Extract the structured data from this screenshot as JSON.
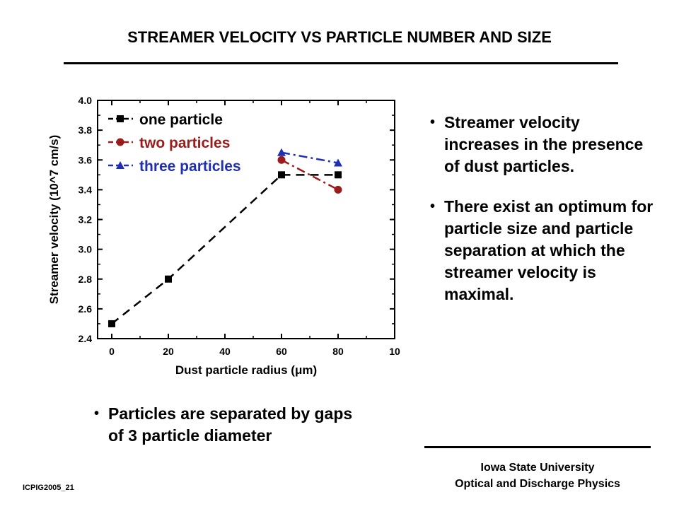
{
  "title": "STREAMER VELOCITY VS PARTICLE NUMBER AND SIZE",
  "bullets": [
    "Streamer velocity increases in the presence of dust particles.",
    "There exist an optimum for particle size and particle separation at which the streamer velocity is maximal."
  ],
  "bullet_symbol": "•",
  "note": {
    "line1": "Particles are separated by  gaps",
    "line2": "of 3 particle diameter"
  },
  "footer": {
    "line1": "Iowa State University",
    "line2": "Optical and Discharge Physics"
  },
  "code": "ICPIG2005_21",
  "chart_data": {
    "type": "line",
    "xlabel": "Dust particle radius (μm)",
    "ylabel": "Streamer velocity (10^7 cm/s)",
    "xlim": [
      -5,
      100
    ],
    "ylim": [
      2.4,
      4.0
    ],
    "xticks": [
      "0",
      "20",
      "40",
      "60",
      "80",
      "10"
    ],
    "yticks": [
      "2.4",
      "2.6",
      "2.8",
      "3.0",
      "3.2",
      "3.4",
      "3.6",
      "3.8",
      "4.0"
    ],
    "legend_position": "top-left",
    "series": [
      {
        "name": "one particle",
        "color": "#000000",
        "marker": "square",
        "dash": "dash",
        "x": [
          0,
          20,
          60,
          80
        ],
        "y": [
          2.5,
          2.8,
          3.5,
          3.5
        ]
      },
      {
        "name": "two particles",
        "color": "#9b1b1b",
        "marker": "circle",
        "dash": "dashdot",
        "x": [
          60,
          80
        ],
        "y": [
          3.6,
          3.4
        ]
      },
      {
        "name": "three particles",
        "color": "#1f2fb0",
        "marker": "triangle",
        "dash": "dashdot",
        "x": [
          60,
          80
        ],
        "y": [
          3.65,
          3.58
        ]
      }
    ]
  }
}
